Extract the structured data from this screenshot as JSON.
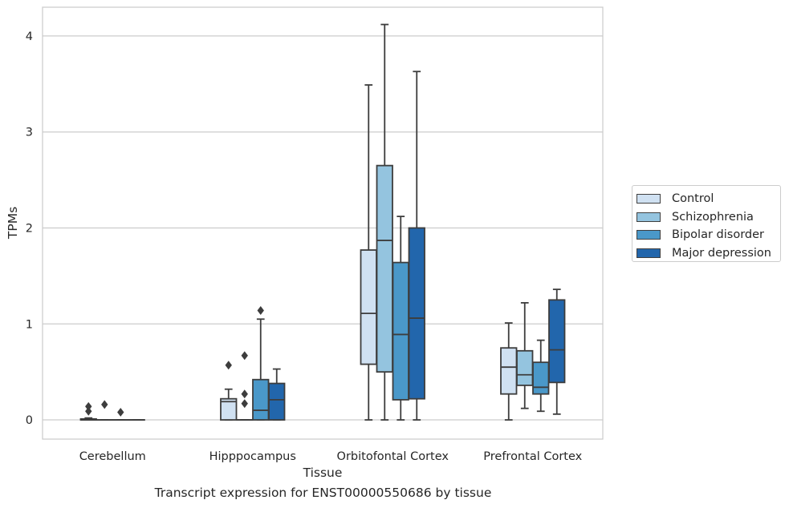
{
  "caption": "Transcript expression for ENST00000550686 by tissue",
  "chart_data": {
    "type": "box",
    "xlabel": "Tissue",
    "ylabel": "TPMs",
    "categories": [
      "Cerebellum",
      "Hipppocampus",
      "Orbitofontal Cortex",
      "Prefrontal Cortex"
    ],
    "yticks": [
      "0",
      "1",
      "2",
      "3",
      "4"
    ],
    "ylim": [
      -0.2,
      4.3
    ],
    "grid": "horizontal",
    "legend_position": "right",
    "series": [
      {
        "name": "Control",
        "color": "#d0e1f2",
        "boxes": [
          {
            "min": 0,
            "q1": 0,
            "median": 0,
            "q3": 0.01,
            "max": 0.02,
            "outliers": [
              0.09,
              0.14
            ]
          },
          {
            "min": 0,
            "q1": 0,
            "median": 0.19,
            "q3": 0.22,
            "max": 0.32,
            "outliers": [
              0.57
            ]
          },
          {
            "min": 0,
            "q1": 0.58,
            "median": 1.11,
            "q3": 1.77,
            "max": 3.49,
            "outliers": []
          },
          {
            "min": 0,
            "q1": 0.27,
            "median": 0.55,
            "q3": 0.75,
            "max": 1.01,
            "outliers": []
          }
        ]
      },
      {
        "name": "Schizophrenia",
        "color": "#94c4df",
        "boxes": [
          {
            "min": 0,
            "q1": 0,
            "median": 0,
            "q3": 0,
            "max": 0,
            "outliers": [
              0.16
            ]
          },
          {
            "min": 0,
            "q1": 0,
            "median": 0,
            "q3": 0,
            "max": 0,
            "outliers": [
              0.17,
              0.27,
              0.67
            ]
          },
          {
            "min": 0,
            "q1": 0.5,
            "median": 1.87,
            "q3": 2.65,
            "max": 4.12,
            "outliers": []
          },
          {
            "min": 0.12,
            "q1": 0.36,
            "median": 0.47,
            "q3": 0.72,
            "max": 1.22,
            "outliers": []
          }
        ]
      },
      {
        "name": "Bipolar disorder",
        "color": "#4a98c9",
        "boxes": [
          {
            "min": 0,
            "q1": 0,
            "median": 0,
            "q3": 0,
            "max": 0,
            "outliers": [
              0.08
            ]
          },
          {
            "min": 0,
            "q1": 0,
            "median": 0.1,
            "q3": 0.42,
            "max": 1.05,
            "outliers": [
              1.14
            ]
          },
          {
            "min": 0,
            "q1": 0.21,
            "median": 0.89,
            "q3": 1.64,
            "max": 2.12,
            "outliers": []
          },
          {
            "min": 0.09,
            "q1": 0.27,
            "median": 0.34,
            "q3": 0.6,
            "max": 0.83,
            "outliers": []
          }
        ]
      },
      {
        "name": "Major depression",
        "color": "#2266ac",
        "boxes": [
          {
            "min": 0,
            "q1": 0,
            "median": 0,
            "q3": 0,
            "max": 0,
            "outliers": []
          },
          {
            "min": 0,
            "q1": 0,
            "median": 0.21,
            "q3": 0.38,
            "max": 0.53,
            "outliers": []
          },
          {
            "min": 0,
            "q1": 0.22,
            "median": 1.06,
            "q3": 2.0,
            "max": 3.63,
            "outliers": []
          },
          {
            "min": 0.06,
            "q1": 0.39,
            "median": 0.73,
            "q3": 1.25,
            "max": 1.36,
            "outliers": []
          }
        ]
      }
    ]
  }
}
